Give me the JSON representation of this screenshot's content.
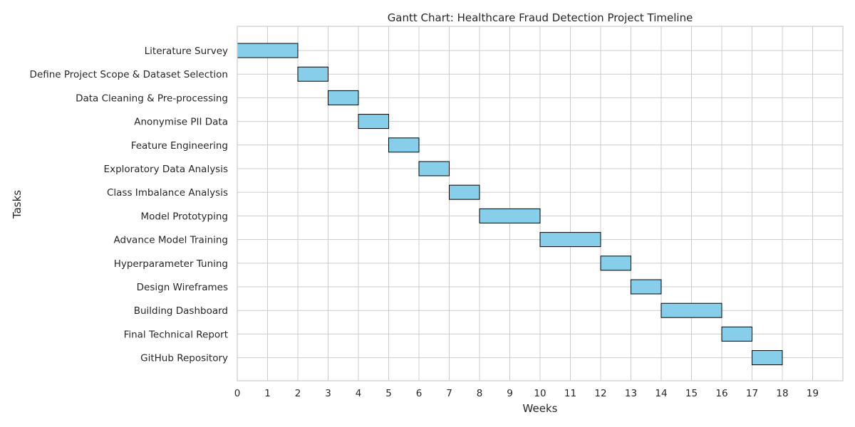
{
  "chart_data": {
    "type": "gantt",
    "title": "Gantt Chart: Healthcare Fraud Detection Project Timeline",
    "xlabel": "Weeks",
    "ylabel": "Tasks",
    "xlim": [
      0,
      20
    ],
    "xticks": [
      0,
      1,
      2,
      3,
      4,
      5,
      6,
      7,
      8,
      9,
      10,
      11,
      12,
      13,
      14,
      15,
      16,
      17,
      18,
      19
    ],
    "grid": true,
    "bar_color": "#87ceeb",
    "tasks": [
      {
        "name": "Literature Survey",
        "start": 0,
        "end": 2
      },
      {
        "name": "Define Project Scope & Dataset Selection",
        "start": 2,
        "end": 3
      },
      {
        "name": "Data Cleaning & Pre-processing",
        "start": 3,
        "end": 4
      },
      {
        "name": "Anonymise PII Data",
        "start": 4,
        "end": 5
      },
      {
        "name": "Feature Engineering",
        "start": 5,
        "end": 6
      },
      {
        "name": "Exploratory Data Analysis",
        "start": 6,
        "end": 7
      },
      {
        "name": "Class Imbalance Analysis",
        "start": 7,
        "end": 8
      },
      {
        "name": "Model Prototyping",
        "start": 8,
        "end": 10
      },
      {
        "name": "Advance Model Training",
        "start": 10,
        "end": 12
      },
      {
        "name": "Hyperparameter Tuning",
        "start": 12,
        "end": 13
      },
      {
        "name": "Design Wireframes",
        "start": 13,
        "end": 14
      },
      {
        "name": "Building Dashboard",
        "start": 14,
        "end": 16
      },
      {
        "name": "Final Technical Report",
        "start": 16,
        "end": 17
      },
      {
        "name": "GitHub Repository",
        "start": 17,
        "end": 18
      }
    ]
  }
}
